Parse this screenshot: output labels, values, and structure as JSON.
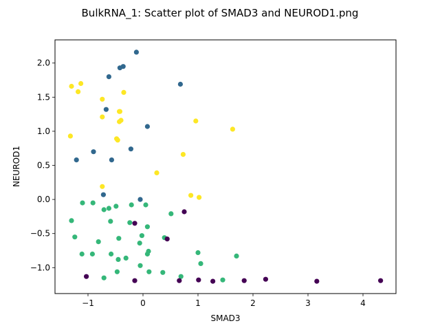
{
  "chart_data": {
    "type": "scatter",
    "title": "BulkRNA_1: Scatter plot of SMAD3 and NEUROD1.png",
    "xlabel": "SMAD3",
    "ylabel": "NEUROD1",
    "xlim": [
      -1.6,
      4.6
    ],
    "ylim": [
      -1.38,
      2.34
    ],
    "xticks": [
      -1,
      0,
      1,
      2,
      3,
      4
    ],
    "yticks": [
      -1.0,
      -0.5,
      0.0,
      0.5,
      1.0,
      1.5,
      2.0
    ],
    "xtick_labels": [
      "−1",
      "0",
      "1",
      "2",
      "3",
      "4"
    ],
    "ytick_labels": [
      "−1.0",
      "−0.5",
      "0.0",
      "0.5",
      "1.0",
      "1.5",
      "2.0"
    ],
    "grid": false,
    "legend": "none",
    "series": [
      {
        "color": "#fde725",
        "points": [
          [
            -1.3,
            1.66
          ],
          [
            -1.18,
            1.58
          ],
          [
            -1.13,
            1.7
          ],
          [
            -0.74,
            1.47
          ],
          [
            -0.35,
            1.57
          ],
          [
            -0.43,
            1.29
          ],
          [
            -0.42,
            1.29
          ],
          [
            -0.4,
            1.16
          ],
          [
            -0.43,
            1.14
          ],
          [
            -0.74,
            1.21
          ],
          [
            -1.32,
            0.93
          ],
          [
            -0.48,
            0.89
          ],
          [
            -0.46,
            0.87
          ],
          [
            0.96,
            1.15
          ],
          [
            1.63,
            1.03
          ],
          [
            0.73,
            0.66
          ],
          [
            0.25,
            0.39
          ],
          [
            -0.74,
            0.19
          ],
          [
            0.87,
            0.06
          ],
          [
            1.02,
            0.03
          ]
        ]
      },
      {
        "color": "#31688e",
        "points": [
          [
            -0.12,
            2.16
          ],
          [
            -0.36,
            1.95
          ],
          [
            -0.42,
            1.93
          ],
          [
            -0.62,
            1.8
          ],
          [
            0.68,
            1.69
          ],
          [
            -0.67,
            1.32
          ],
          [
            0.08,
            1.07
          ],
          [
            -0.9,
            0.7
          ],
          [
            -0.22,
            0.74
          ],
          [
            -1.21,
            0.58
          ],
          [
            -0.57,
            0.58
          ],
          [
            -0.72,
            0.07
          ],
          [
            -0.05,
            0.0
          ]
        ]
      },
      {
        "color": "#35b779",
        "points": [
          [
            -1.1,
            -0.05
          ],
          [
            -0.91,
            -0.05
          ],
          [
            -0.71,
            -0.15
          ],
          [
            -0.62,
            -0.13
          ],
          [
            -0.49,
            -0.1
          ],
          [
            -0.21,
            -0.08
          ],
          [
            0.05,
            -0.08
          ],
          [
            -1.3,
            -0.31
          ],
          [
            -0.59,
            -0.32
          ],
          [
            -0.24,
            -0.34
          ],
          [
            0.51,
            -0.21
          ],
          [
            -1.24,
            -0.55
          ],
          [
            -0.81,
            -0.62
          ],
          [
            -0.44,
            -0.57
          ],
          [
            -0.02,
            -0.53
          ],
          [
            -0.06,
            -0.64
          ],
          [
            0.08,
            -0.4
          ],
          [
            0.39,
            -0.56
          ],
          [
            1.0,
            -0.78
          ],
          [
            1.7,
            -0.83
          ],
          [
            -1.11,
            -0.8
          ],
          [
            -0.92,
            -0.8
          ],
          [
            -0.58,
            -0.8
          ],
          [
            -0.45,
            -0.88
          ],
          [
            -0.31,
            -0.86
          ],
          [
            0.08,
            -0.8
          ],
          [
            0.1,
            -0.76
          ],
          [
            1.05,
            -0.94
          ],
          [
            -0.05,
            -0.97
          ],
          [
            -0.47,
            -1.06
          ],
          [
            0.11,
            -1.06
          ],
          [
            0.36,
            -1.07
          ],
          [
            0.69,
            -1.13
          ],
          [
            -0.71,
            -1.15
          ],
          [
            1.45,
            -1.18
          ]
        ]
      },
      {
        "color": "#440154",
        "points": [
          [
            -0.15,
            -0.35
          ],
          [
            0.75,
            -0.18
          ],
          [
            0.44,
            -0.58
          ],
          [
            -1.03,
            -1.13
          ],
          [
            -0.15,
            -1.19
          ],
          [
            0.66,
            -1.19
          ],
          [
            1.01,
            -1.18
          ],
          [
            1.27,
            -1.2
          ],
          [
            1.84,
            -1.19
          ],
          [
            2.23,
            -1.17
          ],
          [
            3.16,
            -1.2
          ],
          [
            4.32,
            -1.19
          ]
        ]
      }
    ]
  }
}
